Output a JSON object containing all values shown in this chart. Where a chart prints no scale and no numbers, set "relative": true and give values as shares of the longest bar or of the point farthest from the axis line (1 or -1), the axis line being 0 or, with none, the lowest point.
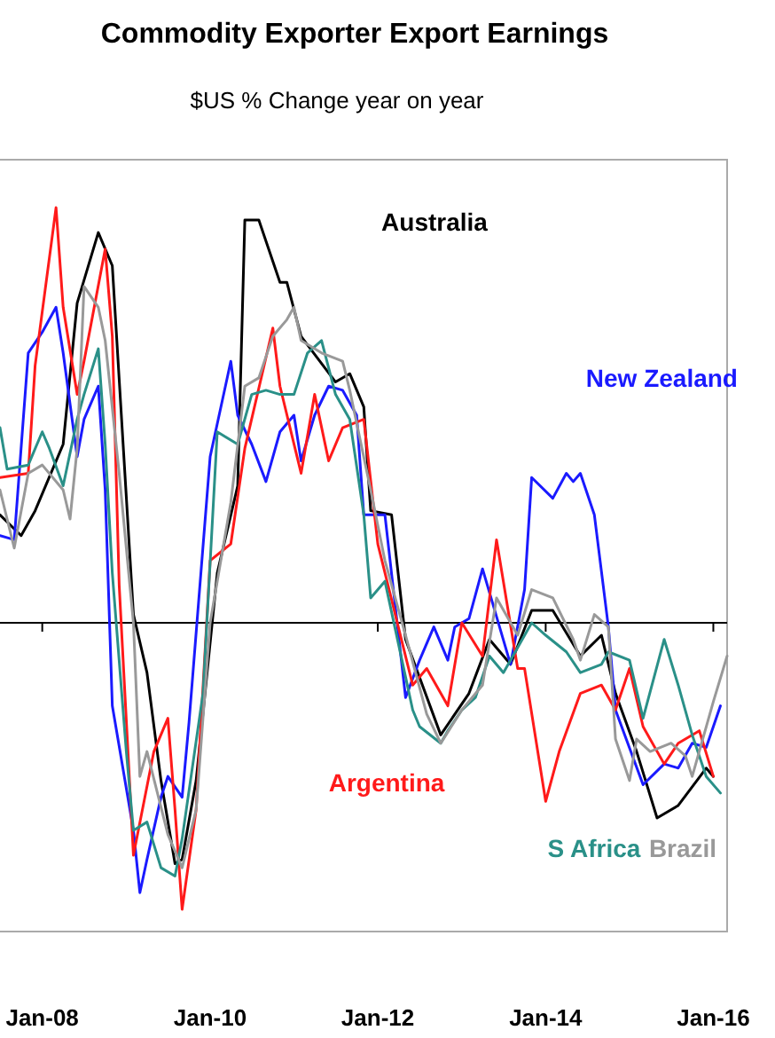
{
  "chart_data": {
    "type": "line",
    "title": "Commodity Exporter Export Earnings",
    "subtitle": "$US % Change year on year",
    "relative": true,
    "xlim": [
      "2007-07",
      "2016-03"
    ],
    "xticks": [
      {
        "value": "2008-01",
        "label": "Jan-08"
      },
      {
        "value": "2010-01",
        "label": "Jan-10"
      },
      {
        "value": "2012-01",
        "label": "Jan-12"
      },
      {
        "value": "2014-01",
        "label": "Jan-14"
      },
      {
        "value": "2016-01",
        "label": "Jan-16"
      }
    ],
    "series": [
      {
        "name": "Australia",
        "color": "#000000",
        "x": [
          "2007-07",
          "2007-10",
          "2007-12",
          "2008-04",
          "2008-06",
          "2008-09",
          "2008-11",
          "2009-02",
          "2009-04",
          "2009-06",
          "2009-08",
          "2009-09",
          "2009-11",
          "2010-02",
          "2010-05",
          "2010-06",
          "2010-08",
          "2010-11",
          "2010-12",
          "2011-02",
          "2011-07",
          "2011-09",
          "2011-11",
          "2011-12",
          "2012-03",
          "2012-05",
          "2012-10",
          "2013-02",
          "2013-05",
          "2013-08",
          "2013-11",
          "2014-02",
          "2014-06",
          "2014-09",
          "2014-11",
          "2015-02",
          "2015-05",
          "2015-08",
          "2015-12",
          "2016-01"
        ],
        "values": [
          0.26,
          0.21,
          0.27,
          0.43,
          0.77,
          0.94,
          0.86,
          0.02,
          -0.12,
          -0.38,
          -0.58,
          -0.57,
          -0.38,
          0.12,
          0.33,
          0.97,
          0.97,
          0.82,
          0.82,
          0.69,
          0.58,
          0.6,
          0.52,
          0.27,
          0.26,
          -0.04,
          -0.27,
          -0.17,
          -0.04,
          -0.1,
          0.03,
          0.03,
          -0.08,
          -0.03,
          -0.17,
          -0.31,
          -0.47,
          -0.44,
          -0.35,
          -0.37
        ]
      },
      {
        "name": "New Zealand",
        "color": "#1a1aff",
        "x": [
          "2007-07",
          "2007-09",
          "2007-11",
          "2008-01",
          "2008-03",
          "2008-04",
          "2008-06",
          "2008-07",
          "2008-09",
          "2008-10",
          "2008-11",
          "2009-02",
          "2009-03",
          "2009-04",
          "2009-06",
          "2009-07",
          "2009-09",
          "2009-10",
          "2010-01",
          "2010-04",
          "2010-05",
          "2010-07",
          "2010-09",
          "2010-11",
          "2011-01",
          "2011-02",
          "2011-04",
          "2011-06",
          "2011-08",
          "2011-10",
          "2011-11",
          "2012-02",
          "2012-05",
          "2012-07",
          "2012-09",
          "2012-11",
          "2012-12",
          "2013-02",
          "2013-04",
          "2013-08",
          "2013-10",
          "2013-11",
          "2014-02",
          "2014-04",
          "2014-05",
          "2014-06",
          "2014-08",
          "2014-10",
          "2014-11",
          "2015-03",
          "2015-06",
          "2015-08",
          "2015-10",
          "2015-12",
          "2016-02"
        ],
        "values": [
          0.21,
          0.2,
          0.65,
          0.7,
          0.76,
          0.65,
          0.4,
          0.49,
          0.57,
          0.32,
          -0.2,
          -0.5,
          -0.65,
          -0.57,
          -0.42,
          -0.37,
          -0.42,
          -0.24,
          0.4,
          0.63,
          0.5,
          0.43,
          0.34,
          0.46,
          0.5,
          0.39,
          0.5,
          0.57,
          0.56,
          0.5,
          0.26,
          0.26,
          -0.18,
          -0.09,
          -0.01,
          -0.09,
          -0.01,
          0.01,
          0.13,
          -0.1,
          0.08,
          0.35,
          0.3,
          0.36,
          0.34,
          0.36,
          0.26,
          -0.01,
          -0.21,
          -0.39,
          -0.34,
          -0.35,
          -0.29,
          -0.3,
          -0.2
        ]
      },
      {
        "name": "Argentina",
        "color": "#ff1a1a",
        "x": [
          "2007-07",
          "2007-11",
          "2007-12",
          "2008-03",
          "2008-04",
          "2008-06",
          "2008-07",
          "2008-10",
          "2008-11",
          "2008-12",
          "2009-02",
          "2009-05",
          "2009-07",
          "2009-08",
          "2009-09",
          "2009-11",
          "2010-01",
          "2010-04",
          "2010-06",
          "2010-10",
          "2010-11",
          "2011-02",
          "2011-04",
          "2011-06",
          "2011-08",
          "2011-11",
          "2012-01",
          "2012-06",
          "2012-08",
          "2012-11",
          "2013-01",
          "2013-04",
          "2013-06",
          "2013-09",
          "2013-10",
          "2014-01",
          "2014-03",
          "2014-06",
          "2014-09",
          "2014-11",
          "2015-01",
          "2015-03",
          "2015-06",
          "2015-08",
          "2015-11",
          "2016-01"
        ],
        "values": [
          0.35,
          0.36,
          0.62,
          1,
          0.76,
          0.55,
          0.63,
          0.9,
          0.69,
          0.09,
          -0.56,
          -0.31,
          -0.23,
          -0.45,
          -0.69,
          -0.45,
          0.15,
          0.19,
          0.42,
          0.71,
          0.57,
          0.36,
          0.55,
          0.39,
          0.47,
          0.49,
          0.19,
          -0.15,
          -0.11,
          -0.2,
          0,
          -0.08,
          0.2,
          -0.11,
          -0.11,
          -0.43,
          -0.31,
          -0.17,
          -0.15,
          -0.21,
          -0.11,
          -0.25,
          -0.34,
          -0.29,
          -0.26,
          -0.37
        ]
      },
      {
        "name": "S Africa",
        "color": "#2a9088",
        "x": [
          "2007-07",
          "2007-08",
          "2007-11",
          "2008-01",
          "2008-02",
          "2008-04",
          "2008-06",
          "2008-07",
          "2008-09",
          "2008-10",
          "2008-11",
          "2009-01",
          "2009-02",
          "2009-04",
          "2009-06",
          "2009-08",
          "2009-09",
          "2009-12",
          "2010-02",
          "2010-05",
          "2010-07",
          "2010-09",
          "2010-11",
          "2011-01",
          "2011-03",
          "2011-05",
          "2011-07",
          "2011-09",
          "2011-11",
          "2011-12",
          "2012-02",
          "2012-06",
          "2012-07",
          "2012-10",
          "2012-11",
          "2013-01",
          "2013-03",
          "2013-05",
          "2013-07",
          "2013-11",
          "2014-01",
          "2014-04",
          "2014-06",
          "2014-09",
          "2014-10",
          "2015-01",
          "2015-03",
          "2015-06",
          "2015-08",
          "2015-10",
          "2015-12",
          "2016-02"
        ],
        "values": [
          0.47,
          0.37,
          0.38,
          0.46,
          0.42,
          0.33,
          0.49,
          0.55,
          0.66,
          0.43,
          0.12,
          -0.31,
          -0.5,
          -0.48,
          -0.59,
          -0.61,
          -0.52,
          -0.17,
          0.46,
          0.43,
          0.55,
          0.56,
          0.55,
          0.55,
          0.65,
          0.68,
          0.55,
          0.49,
          0.26,
          0.06,
          0.1,
          -0.21,
          -0.25,
          -0.29,
          -0.26,
          -0.21,
          -0.18,
          -0.08,
          -0.12,
          0,
          -0.03,
          -0.07,
          -0.12,
          -0.1,
          -0.07,
          -0.09,
          -0.23,
          -0.04,
          -0.15,
          -0.27,
          -0.37,
          -0.41
        ]
      },
      {
        "name": "Brazil",
        "color": "#999999",
        "x": [
          "2007-07",
          "2007-09",
          "2007-11",
          "2008-01",
          "2008-04",
          "2008-05",
          "2008-06",
          "2008-07",
          "2008-09",
          "2008-10",
          "2008-12",
          "2009-02",
          "2009-03",
          "2009-04",
          "2009-07",
          "2009-09",
          "2009-11",
          "2010-01",
          "2010-03",
          "2010-04",
          "2010-06",
          "2010-08",
          "2010-10",
          "2010-12",
          "2011-01",
          "2011-02",
          "2011-05",
          "2011-08",
          "2011-09",
          "2011-12",
          "2012-02",
          "2012-05",
          "2012-08",
          "2012-10",
          "2013-01",
          "2013-04",
          "2013-06",
          "2013-09",
          "2013-11",
          "2014-02",
          "2014-05",
          "2014-06",
          "2014-08",
          "2014-10",
          "2014-11",
          "2015-01",
          "2015-02",
          "2015-04",
          "2015-07",
          "2015-09",
          "2015-10",
          "2016-01",
          "2016-03"
        ],
        "values": [
          0.32,
          0.18,
          0.36,
          0.38,
          0.32,
          0.25,
          0.42,
          0.81,
          0.76,
          0.68,
          0.36,
          0,
          -0.37,
          -0.31,
          -0.51,
          -0.59,
          -0.45,
          0,
          0.19,
          0.29,
          0.57,
          0.59,
          0.69,
          0.73,
          0.76,
          0.68,
          0.65,
          0.63,
          0.56,
          0.32,
          0.15,
          -0.03,
          -0.22,
          -0.29,
          -0.21,
          -0.15,
          0.06,
          -0.03,
          0.08,
          0.06,
          -0.04,
          -0.09,
          0.02,
          -0.01,
          -0.28,
          -0.38,
          -0.28,
          -0.31,
          -0.29,
          -0.32,
          -0.37,
          -0.19,
          -0.08
        ]
      }
    ]
  }
}
